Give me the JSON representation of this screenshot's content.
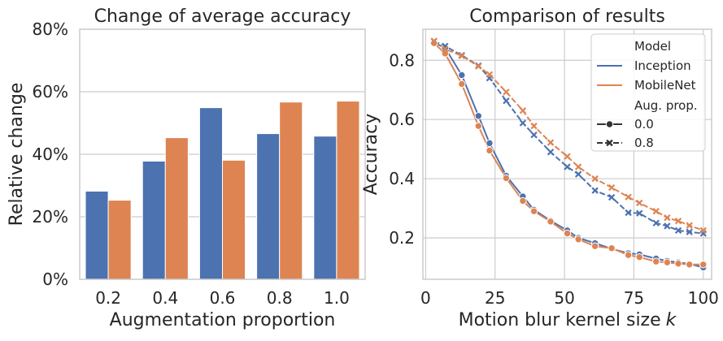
{
  "chart_data": [
    {
      "type": "bar",
      "title": "Change of average accuracy",
      "xlabel": "Augmentation proportion",
      "ylabel": "Relative change",
      "categories": [
        "0.2",
        "0.4",
        "0.6",
        "0.8",
        "1.0"
      ],
      "ylim": [
        0,
        80
      ],
      "yticks": [
        "0%",
        "20%",
        "40%",
        "60%",
        "80%"
      ],
      "grid": "y",
      "series": [
        {
          "color": "#4c72b0",
          "values": [
            28.2,
            37.8,
            54.9,
            46.6,
            45.8
          ]
        },
        {
          "color": "#dd8452",
          "values": [
            25.3,
            45.3,
            38.1,
            56.7,
            57.0
          ]
        }
      ]
    },
    {
      "type": "line",
      "title": "Comparison of results",
      "xlabel": "Motion blur kernel size",
      "xlabel_italic": "k",
      "ylabel": "Accuracy",
      "xlim": [
        -1,
        103
      ],
      "ylim": [
        0.06,
        0.905
      ],
      "xticks": [
        "0",
        "25",
        "50",
        "75",
        "100"
      ],
      "yticks": [
        "0.2",
        "0.4",
        "0.6",
        "0.8"
      ],
      "grid": "both",
      "legend": {
        "position": "top-right",
        "title_model": "Model",
        "title_aug": "Aug. prop.",
        "entries_model": [
          "Inception",
          "MobileNet"
        ],
        "entries_aug": [
          "0.0",
          "0.8"
        ]
      },
      "series": [
        {
          "model": "Inception",
          "aug": "0.0",
          "color": "#4c72b0",
          "dash": false,
          "marker": "circle",
          "x": [
            3,
            7,
            13,
            19,
            23,
            29,
            35,
            39,
            45,
            51,
            55,
            61,
            67,
            73,
            77,
            83,
            87,
            91,
            95,
            100
          ],
          "y": [
            0.86,
            0.842,
            0.75,
            0.612,
            0.52,
            0.41,
            0.34,
            0.295,
            0.258,
            0.225,
            0.2,
            0.182,
            0.163,
            0.148,
            0.144,
            0.13,
            0.122,
            0.117,
            0.112,
            0.1
          ]
        },
        {
          "model": "MobileNet",
          "aug": "0.0",
          "color": "#dd8452",
          "dash": false,
          "marker": "circle",
          "x": [
            3,
            7,
            13,
            19,
            23,
            29,
            35,
            39,
            45,
            51,
            55,
            61,
            67,
            73,
            77,
            83,
            87,
            91,
            95,
            100
          ],
          "y": [
            0.858,
            0.823,
            0.72,
            0.578,
            0.495,
            0.402,
            0.325,
            0.29,
            0.255,
            0.215,
            0.195,
            0.172,
            0.165,
            0.142,
            0.135,
            0.12,
            0.117,
            0.113,
            0.11,
            0.11
          ]
        },
        {
          "model": "Inception",
          "aug": "0.8",
          "color": "#4c72b0",
          "dash": true,
          "marker": "x",
          "x": [
            3,
            7,
            13,
            19,
            23,
            29,
            35,
            39,
            45,
            51,
            55,
            61,
            67,
            73,
            77,
            83,
            87,
            91,
            95,
            100
          ],
          "y": [
            0.865,
            0.848,
            0.817,
            0.782,
            0.74,
            0.663,
            0.588,
            0.548,
            0.49,
            0.44,
            0.415,
            0.36,
            0.337,
            0.285,
            0.283,
            0.25,
            0.24,
            0.225,
            0.22,
            0.215
          ]
        },
        {
          "model": "MobileNet",
          "aug": "0.8",
          "color": "#dd8452",
          "dash": true,
          "marker": "x",
          "x": [
            3,
            7,
            13,
            19,
            23,
            29,
            35,
            39,
            45,
            51,
            55,
            61,
            67,
            73,
            77,
            83,
            87,
            91,
            95,
            100
          ],
          "y": [
            0.865,
            0.838,
            0.815,
            0.78,
            0.752,
            0.693,
            0.63,
            0.578,
            0.522,
            0.475,
            0.44,
            0.4,
            0.37,
            0.338,
            0.318,
            0.29,
            0.268,
            0.257,
            0.242,
            0.225
          ]
        }
      ]
    }
  ]
}
